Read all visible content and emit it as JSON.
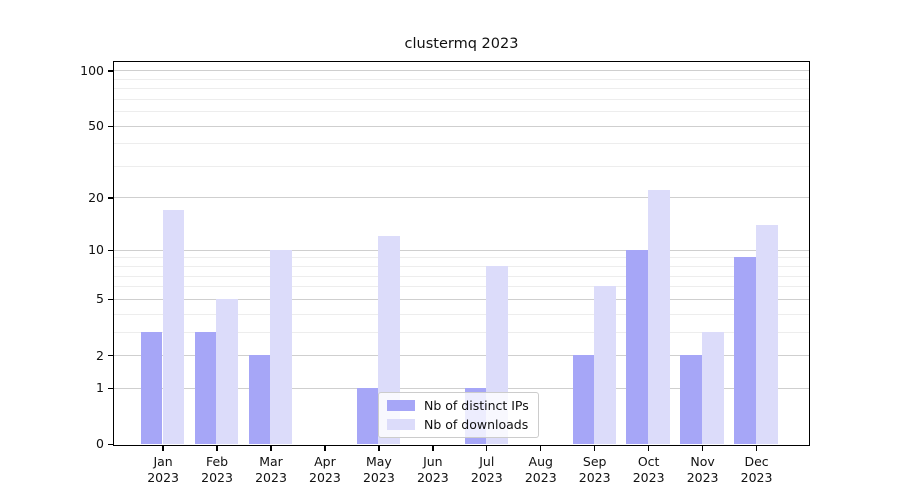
{
  "title": "clustermq 2023",
  "colors": {
    "bar_distinct_ips": "#a6a6f7",
    "bar_downloads": "#dcdcfa",
    "grid_major": "#cfcfcf",
    "grid_minor": "#ededed",
    "spine": "#000000",
    "legend_border": "#cccccc",
    "text": "#111111"
  },
  "chart_data": {
    "type": "bar",
    "title": "clustermq 2023",
    "categories": [
      "Jan 2023",
      "Feb 2023",
      "Mar 2023",
      "Apr 2023",
      "May 2023",
      "Jun 2023",
      "Jul 2023",
      "Aug 2023",
      "Sep 2023",
      "Oct 2023",
      "Nov 2023",
      "Dec 2023"
    ],
    "series": [
      {
        "name": "Nb of distinct IPs",
        "color": "#a6a6f7",
        "values": [
          3,
          3,
          2,
          0,
          1,
          0,
          1,
          0,
          2,
          10,
          2,
          9
        ]
      },
      {
        "name": "Nb of downloads",
        "color": "#dcdcfa",
        "values": [
          17,
          5,
          10,
          0,
          12,
          0,
          8,
          0,
          6,
          22,
          3,
          14
        ]
      }
    ],
    "xlabel": "",
    "ylabel": "",
    "y_scale": "log1p",
    "ylim": [
      0,
      111
    ],
    "y_ticks": [
      0,
      1,
      2,
      5,
      10,
      20,
      50,
      100
    ],
    "y_minor_gridlines": [
      3,
      4,
      6,
      7,
      8,
      9,
      30,
      40,
      60,
      70,
      80,
      90
    ],
    "grid": true,
    "legend_position": "lower center"
  },
  "legend": {
    "item1": "Nb of distinct IPs",
    "item2": "Nb of downloads"
  }
}
